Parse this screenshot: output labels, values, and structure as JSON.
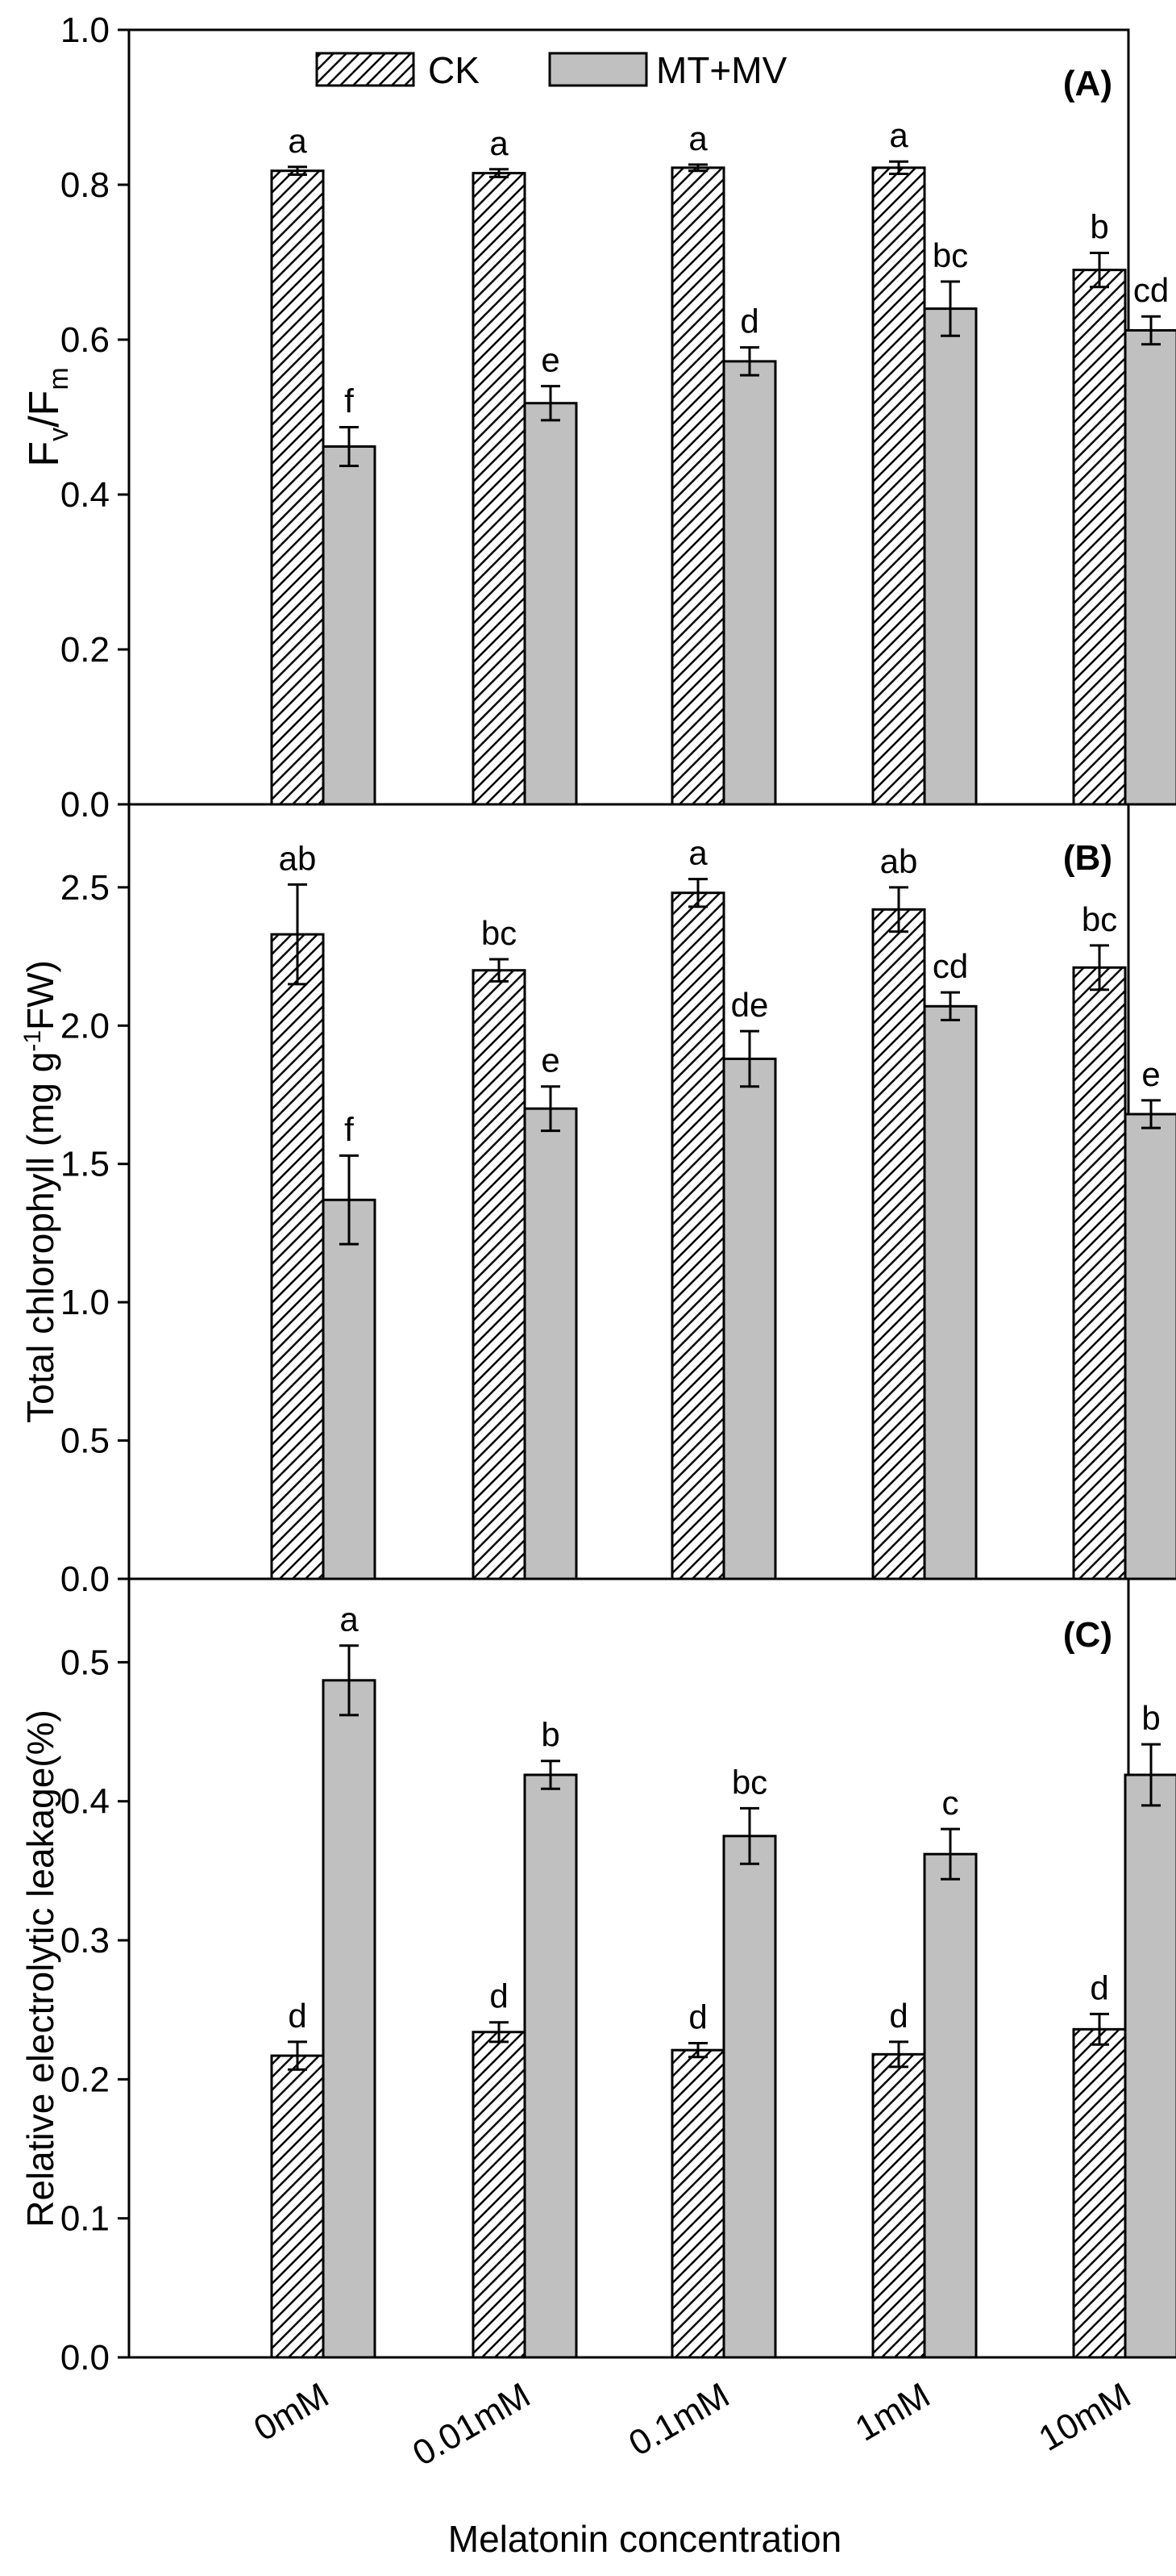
{
  "chart_data": [
    {
      "panel": "(A)",
      "type": "bar",
      "title": "",
      "ylabel": "Fv/Fm",
      "ylabel_main": "F",
      "ylabel_sub1": "v",
      "ylabel_mid": "/F",
      "ylabel_sub2": "m",
      "ylim": [
        0,
        1.0
      ],
      "yticks": [
        0.0,
        0.2,
        0.4,
        0.6,
        0.8,
        1.0
      ],
      "ytick_labels": [
        "0.0",
        "0.2",
        "0.4",
        "0.6",
        "0.8",
        "1.0"
      ],
      "categories": [
        "0mM",
        "0.01mM",
        "0.1mM",
        "1mM",
        "10mM"
      ],
      "series": [
        {
          "name": "CK",
          "values": [
            0.818,
            0.815,
            0.822,
            0.822,
            0.69
          ],
          "errors": [
            0.005,
            0.005,
            0.004,
            0.008,
            0.022
          ],
          "letters": [
            "a",
            "a",
            "a",
            "a",
            "b"
          ]
        },
        {
          "name": "MT+MV",
          "values": [
            0.462,
            0.518,
            0.572,
            0.64,
            0.612
          ],
          "errors": [
            0.025,
            0.022,
            0.018,
            0.035,
            0.018
          ],
          "letters": [
            "f",
            "e",
            "d",
            "bc",
            "cd"
          ]
        }
      ],
      "legend": {
        "entries": [
          "CK",
          "MT+MV"
        ],
        "placement": "top-left"
      }
    },
    {
      "panel": "(B)",
      "type": "bar",
      "title": "",
      "ylabel": "Total chlorophyll (mg g-1FW)",
      "ylabel_before": "Total chlorophyll (mg g",
      "ylabel_sup": "-1",
      "ylabel_after": "FW)",
      "ylim": [
        0,
        2.8
      ],
      "yticks": [
        0.0,
        0.5,
        1.0,
        1.5,
        2.0,
        2.5
      ],
      "ytick_labels": [
        "0.0",
        "0.5",
        "1.0",
        "1.5",
        "2.0",
        "2.5"
      ],
      "categories": [
        "0mM",
        "0.01mM",
        "0.1mM",
        "1mM",
        "10mM"
      ],
      "series": [
        {
          "name": "CK",
          "values": [
            2.33,
            2.2,
            2.48,
            2.42,
            2.21
          ],
          "errors": [
            0.18,
            0.04,
            0.05,
            0.08,
            0.08
          ],
          "letters": [
            "ab",
            "bc",
            "a",
            "ab",
            "bc"
          ]
        },
        {
          "name": "MT+MV",
          "values": [
            1.37,
            1.7,
            1.88,
            2.07,
            1.68
          ],
          "errors": [
            0.16,
            0.08,
            0.1,
            0.05,
            0.05
          ],
          "letters": [
            "f",
            "e",
            "de",
            "cd",
            "e"
          ]
        }
      ]
    },
    {
      "panel": "(C)",
      "type": "bar",
      "title": "",
      "ylabel": "Relative electrolytic leakage(%)",
      "xlabel": "Melatonin concentration",
      "ylim": [
        0,
        0.56
      ],
      "yticks": [
        0.0,
        0.1,
        0.2,
        0.3,
        0.4,
        0.5
      ],
      "ytick_labels": [
        "0.0",
        "0.1",
        "0.2",
        "0.3",
        "0.4",
        "0.5"
      ],
      "categories": [
        "0mM",
        "0.01mM",
        "0.1mM",
        "1mM",
        "10mM"
      ],
      "series": [
        {
          "name": "CK",
          "values": [
            0.217,
            0.234,
            0.221,
            0.218,
            0.236
          ],
          "errors": [
            0.01,
            0.007,
            0.005,
            0.009,
            0.011
          ],
          "letters": [
            "d",
            "d",
            "d",
            "d",
            "d"
          ]
        },
        {
          "name": "MT+MV",
          "values": [
            0.487,
            0.419,
            0.375,
            0.362,
            0.419
          ],
          "errors": [
            0.025,
            0.01,
            0.02,
            0.018,
            0.022
          ],
          "letters": [
            "a",
            "b",
            "bc",
            "c",
            "b"
          ]
        }
      ]
    }
  ]
}
